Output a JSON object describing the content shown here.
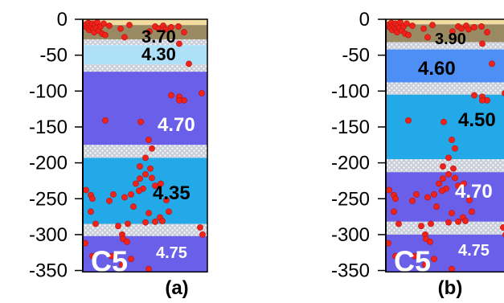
{
  "depth_axis": {
    "ticks": [
      "0",
      "-50",
      "-100",
      "-150",
      "-200",
      "-250",
      "-300",
      "-350"
    ]
  },
  "panels": [
    {
      "id": "a",
      "label": "(a)",
      "corner_label": "C5",
      "layers": [
        {
          "top": 0,
          "bottom": -8,
          "fill": "#f3dca0",
          "texture": "solid"
        },
        {
          "top": -8,
          "bottom": -28,
          "fill": "#9a8a63",
          "texture": "solid",
          "velocity": "3.70",
          "velocity_color": "#000000"
        },
        {
          "top": -28,
          "bottom": -36,
          "fill": "#cfd4dc",
          "texture": "dots"
        },
        {
          "top": -36,
          "bottom": -63,
          "fill": "#aee1f8",
          "texture": "solid",
          "velocity": "4.30",
          "velocity_color": "#000000"
        },
        {
          "top": -63,
          "bottom": -73,
          "fill": "#cfd4dc",
          "texture": "dots"
        },
        {
          "top": -73,
          "bottom": -175,
          "fill": "#6a5fe8",
          "texture": "solid",
          "velocity": "4.70",
          "velocity_color": "#ffffff"
        },
        {
          "top": -175,
          "bottom": -193,
          "fill": "#cfd4dc",
          "texture": "dots"
        },
        {
          "top": -193,
          "bottom": -285,
          "fill": "#23a8e8",
          "texture": "solid",
          "velocity": "4.35",
          "velocity_color": "#000000"
        },
        {
          "top": -285,
          "bottom": -302,
          "fill": "#cfd4dc",
          "texture": "dots"
        },
        {
          "top": -302,
          "bottom": -352,
          "fill": "#6a5fe8",
          "texture": "solid",
          "velocity": "4.75",
          "velocity_color": "#ffffff"
        }
      ],
      "events": [
        [
          3,
          -10
        ],
        [
          4,
          -7
        ],
        [
          6,
          -12
        ],
        [
          7,
          -5
        ],
        [
          8,
          -15
        ],
        [
          9,
          -9
        ],
        [
          11,
          -11
        ],
        [
          12,
          -6
        ],
        [
          13,
          -14
        ],
        [
          14,
          -18
        ],
        [
          15,
          -8
        ],
        [
          17,
          -12
        ],
        [
          18,
          -4
        ],
        [
          20,
          -16
        ],
        [
          22,
          -10
        ],
        [
          24,
          -20
        ],
        [
          26,
          -6
        ],
        [
          28,
          -22
        ],
        [
          33,
          -9
        ],
        [
          47,
          -13
        ],
        [
          52,
          -25
        ],
        [
          58,
          -8
        ],
        [
          83,
          -17
        ],
        [
          90,
          -10
        ],
        [
          94,
          -13
        ],
        [
          100,
          -9
        ],
        [
          103,
          -14
        ],
        [
          110,
          -11
        ],
        [
          119,
          -10
        ],
        [
          126,
          -18
        ],
        [
          120,
          -34
        ],
        [
          132,
          -62
        ],
        [
          110,
          -106
        ],
        [
          120,
          -108
        ],
        [
          126,
          -113
        ],
        [
          148,
          -103
        ],
        [
          120,
          -113
        ],
        [
          28,
          -141
        ],
        [
          72,
          -143
        ],
        [
          82,
          -168
        ],
        [
          86,
          -180
        ],
        [
          78,
          -193
        ],
        [
          71,
          -205
        ],
        [
          84,
          -208
        ],
        [
          78,
          -216
        ],
        [
          71,
          -222
        ],
        [
          66,
          -229
        ],
        [
          86,
          -221
        ],
        [
          90,
          -232
        ],
        [
          97,
          -229
        ],
        [
          75,
          -236
        ],
        [
          70,
          -239
        ],
        [
          60,
          -244
        ],
        [
          52,
          -248
        ],
        [
          63,
          -261
        ],
        [
          82,
          -270
        ],
        [
          96,
          -276
        ],
        [
          78,
          -283
        ],
        [
          90,
          -282
        ],
        [
          99,
          -281
        ],
        [
          4,
          -238
        ],
        [
          10,
          -245
        ],
        [
          12,
          -250
        ],
        [
          10,
          -268
        ],
        [
          16,
          -285
        ],
        [
          33,
          -253
        ],
        [
          38,
          -244
        ],
        [
          44,
          -288
        ],
        [
          49,
          -300
        ],
        [
          50,
          -306
        ],
        [
          56,
          -285
        ],
        [
          3,
          -312
        ],
        [
          55,
          -310
        ],
        [
          60,
          -334
        ],
        [
          12,
          -330
        ],
        [
          36,
          -330
        ],
        [
          49,
          -342
        ],
        [
          82,
          -348
        ],
        [
          146,
          -290
        ],
        [
          149,
          -300
        ],
        [
          107,
          -268
        ],
        [
          104,
          -252
        ]
      ]
    },
    {
      "id": "b",
      "label": "(b)",
      "corner_label": "C5",
      "layers": [
        {
          "top": 0,
          "bottom": -7,
          "fill": "#f3dca0",
          "texture": "solid"
        },
        {
          "top": -7,
          "bottom": -32,
          "fill": "#9a8a63",
          "texture": "solid",
          "velocity": "3.90",
          "velocity_color": "#000000"
        },
        {
          "top": -32,
          "bottom": -42,
          "fill": "#cfd4dc",
          "texture": "dots"
        },
        {
          "top": -42,
          "bottom": -88,
          "fill": "#4d8ff5",
          "texture": "solid",
          "velocity": "4.60",
          "velocity_color": "#000000"
        },
        {
          "top": -88,
          "bottom": -105,
          "fill": "#cfd4dc",
          "texture": "dots"
        },
        {
          "top": -105,
          "bottom": -195,
          "fill": "#23a8e8",
          "texture": "solid",
          "velocity": "4.50",
          "velocity_color": "#000000"
        },
        {
          "top": -195,
          "bottom": -213,
          "fill": "#cfd4dc",
          "texture": "dots"
        },
        {
          "top": -213,
          "bottom": -282,
          "fill": "#6a5fe8",
          "texture": "solid",
          "velocity": "4.70",
          "velocity_color": "#ffffff"
        },
        {
          "top": -282,
          "bottom": -300,
          "fill": "#cfd4dc",
          "texture": "dots"
        },
        {
          "top": -300,
          "bottom": -352,
          "fill": "#6a5fe8",
          "texture": "solid",
          "velocity": "4.75",
          "velocity_color": "#ffffff"
        }
      ],
      "events": [
        [
          3,
          -10
        ],
        [
          4,
          -7
        ],
        [
          6,
          -12
        ],
        [
          7,
          -5
        ],
        [
          8,
          -15
        ],
        [
          9,
          -9
        ],
        [
          11,
          -11
        ],
        [
          12,
          -6
        ],
        [
          13,
          -14
        ],
        [
          14,
          -18
        ],
        [
          15,
          -8
        ],
        [
          17,
          -12
        ],
        [
          18,
          -4
        ],
        [
          20,
          -16
        ],
        [
          22,
          -10
        ],
        [
          24,
          -20
        ],
        [
          26,
          -6
        ],
        [
          28,
          -22
        ],
        [
          33,
          -9
        ],
        [
          47,
          -13
        ],
        [
          52,
          -25
        ],
        [
          58,
          -8
        ],
        [
          83,
          -17
        ],
        [
          90,
          -10
        ],
        [
          94,
          -13
        ],
        [
          100,
          -9
        ],
        [
          103,
          -14
        ],
        [
          110,
          -11
        ],
        [
          119,
          -10
        ],
        [
          126,
          -18
        ],
        [
          120,
          -34
        ],
        [
          132,
          -62
        ],
        [
          110,
          -106
        ],
        [
          120,
          -108
        ],
        [
          126,
          -113
        ],
        [
          148,
          -103
        ],
        [
          120,
          -113
        ],
        [
          28,
          -141
        ],
        [
          72,
          -143
        ],
        [
          82,
          -168
        ],
        [
          86,
          -180
        ],
        [
          78,
          -193
        ],
        [
          71,
          -205
        ],
        [
          84,
          -208
        ],
        [
          78,
          -216
        ],
        [
          71,
          -222
        ],
        [
          66,
          -229
        ],
        [
          86,
          -221
        ],
        [
          90,
          -232
        ],
        [
          97,
          -229
        ],
        [
          75,
          -236
        ],
        [
          70,
          -239
        ],
        [
          60,
          -244
        ],
        [
          52,
          -248
        ],
        [
          63,
          -261
        ],
        [
          82,
          -270
        ],
        [
          96,
          -276
        ],
        [
          78,
          -283
        ],
        [
          90,
          -282
        ],
        [
          99,
          -281
        ],
        [
          4,
          -238
        ],
        [
          10,
          -245
        ],
        [
          12,
          -250
        ],
        [
          10,
          -268
        ],
        [
          16,
          -285
        ],
        [
          33,
          -253
        ],
        [
          38,
          -244
        ],
        [
          44,
          -288
        ],
        [
          49,
          -300
        ],
        [
          50,
          -306
        ],
        [
          56,
          -285
        ],
        [
          3,
          -312
        ],
        [
          55,
          -310
        ],
        [
          60,
          -334
        ],
        [
          12,
          -330
        ],
        [
          36,
          -330
        ],
        [
          49,
          -342
        ],
        [
          82,
          -348
        ],
        [
          146,
          -290
        ],
        [
          149,
          -300
        ],
        [
          107,
          -268
        ],
        [
          104,
          -252
        ]
      ]
    }
  ],
  "colors": {
    "event": "#f0231b",
    "event_stroke": "#b80f0a",
    "text": "#000000"
  }
}
